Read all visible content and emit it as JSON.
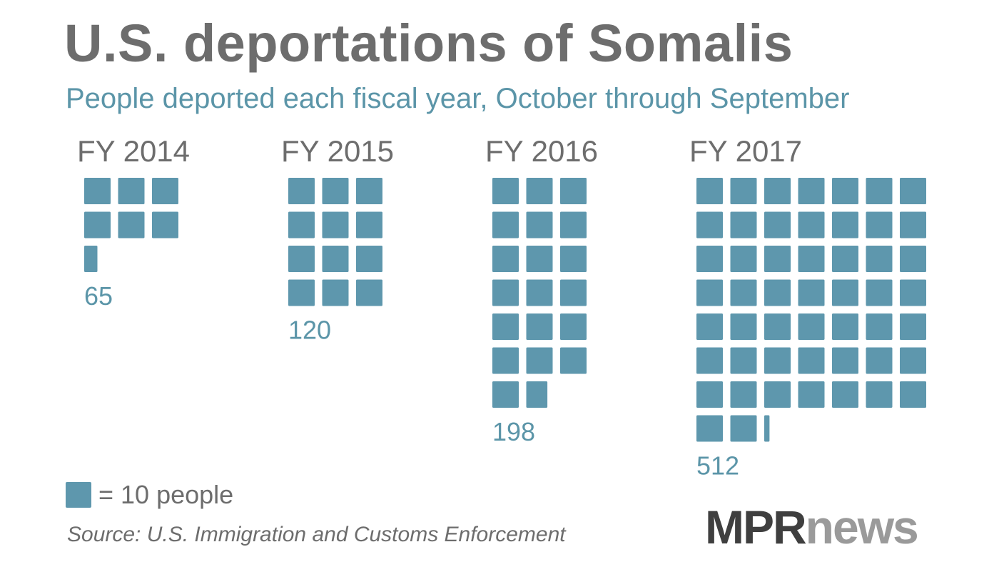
{
  "chart_data": {
    "type": "waffle",
    "title": "U.S. deportations of Somalis",
    "subtitle": "People deported each fiscal year, October through September",
    "unit_per_square": 10,
    "legend": {
      "label": "= 10 people",
      "color": "#5e97ad"
    },
    "categories": [
      "FY 2014",
      "FY 2015",
      "FY 2016",
      "FY 2017"
    ],
    "values": [
      65,
      120,
      198,
      512
    ],
    "columns": [
      3,
      3,
      3,
      7
    ],
    "value_color": "#5b95a8",
    "square_color": "#5e97ad"
  },
  "source": "Source: U.S. Immigration and Customs Enforcement",
  "logo": {
    "primary": "MPR",
    "secondary": "news"
  }
}
